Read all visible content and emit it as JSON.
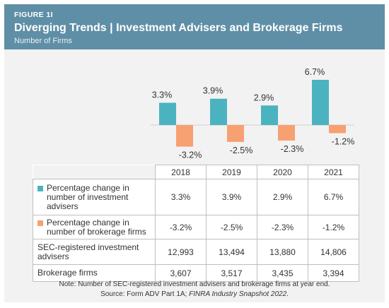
{
  "header": {
    "figure_label": "FIGURE 1I",
    "title": "Diverging Trends | Investment Advisers and Brokerage Firms",
    "subtitle": "Number of Firms"
  },
  "colors": {
    "header_bg": "#5f8fa6",
    "advisers": "#4bb3bf",
    "brokerage": "#f7a072"
  },
  "chart_data": {
    "type": "bar",
    "categories": [
      "2018",
      "2019",
      "2020",
      "2021"
    ],
    "series": [
      {
        "name": "Percentage change in number of investment advisers",
        "values": [
          3.3,
          3.9,
          2.9,
          6.7
        ],
        "labels": [
          "3.3%",
          "3.9%",
          "2.9%",
          "6.7%"
        ]
      },
      {
        "name": "Percentage change in number of brokerage firms",
        "values": [
          -3.2,
          -2.5,
          -2.3,
          -1.2
        ],
        "labels": [
          "-3.2%",
          "-2.5%",
          "-2.3%",
          "-1.2%"
        ]
      }
    ],
    "ylim": [
      -3.2,
      6.7
    ],
    "grid": false,
    "legend": "table"
  },
  "table": {
    "rows": [
      {
        "label": "Percentage change in number of investment advisers",
        "swatch": "advisers",
        "values": [
          "3.3%",
          "3.9%",
          "2.9%",
          "6.7%"
        ]
      },
      {
        "label": "Percentage change in number of brokerage firms",
        "swatch": "brokerage",
        "values": [
          "-3.2%",
          "-2.5%",
          "-2.3%",
          "-1.2%"
        ]
      },
      {
        "label": "SEC-registered investment advisers",
        "values": [
          "12,993",
          "13,494",
          "13,880",
          "14,806"
        ]
      },
      {
        "label": "Brokerage firms",
        "values": [
          "3,607",
          "3,517",
          "3,435",
          "3,394"
        ]
      }
    ]
  },
  "notes": {
    "line1": "Note: Number of SEC-registered investment advisers and brokerage firms at year end.",
    "line2_prefix": "Source: Form ADV Part 1A; ",
    "line2_italic": "FINRA Industry Snapshot 2022",
    "line2_suffix": "."
  }
}
